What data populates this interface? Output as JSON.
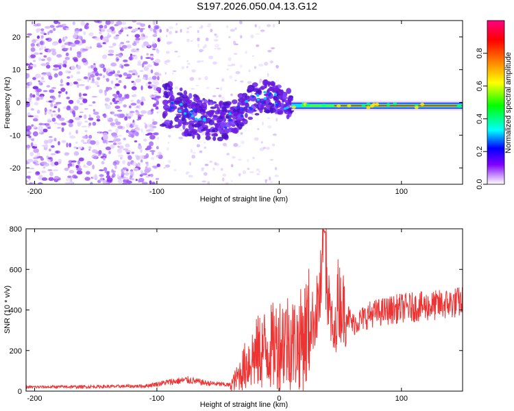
{
  "title": "S197.2026.050.04.13.G12",
  "chart_data": [
    {
      "type": "heatmap",
      "xlabel": "Height of straight line (km)",
      "ylabel": "Frequency (Hz)",
      "xlim": [
        -207,
        150
      ],
      "ylim": [
        -25,
        25
      ],
      "xticks": [
        -200,
        -100,
        0,
        100
      ],
      "yticks": [
        20,
        10,
        0,
        -10,
        -20
      ],
      "colorbar": {
        "label": "Normalized spectral amplitude",
        "range": [
          0,
          1
        ],
        "ticks": [
          "0.0",
          "0.2",
          "0.4",
          "0.6",
          "0.8"
        ],
        "colors": [
          "#ffffff",
          "#cc99ff",
          "#8000ff",
          "#0000ff",
          "#00ffff",
          "#00ff00",
          "#ffff00",
          "#ff8000",
          "#ff0000",
          "#ff0080"
        ]
      },
      "ridge": {
        "description_values": [
          {
            "x": -80,
            "y": -3
          },
          {
            "x": -60,
            "y": -5
          },
          {
            "x": -45,
            "y": -6
          },
          {
            "x": -30,
            "y": -2
          },
          {
            "x": -15,
            "y": 2
          },
          {
            "x": 0,
            "y": 1
          },
          {
            "x": 10,
            "y": -1
          },
          {
            "x": 30,
            "y": 0
          },
          {
            "x": 80,
            "y": -1
          },
          {
            "x": 150,
            "y": -1
          }
        ],
        "stable_band_start": 10,
        "stable_band_freq": -1
      }
    },
    {
      "type": "line",
      "xlabel": "Height of straight line (km)",
      "ylabel": "SNR (10 * v/v)",
      "xlim": [
        -207,
        150
      ],
      "ylim": [
        0,
        800
      ],
      "xticks": [
        -200,
        -100,
        0,
        100
      ],
      "yticks": [
        0,
        200,
        400,
        600,
        800
      ],
      "series": [
        {
          "name": "SNR",
          "color": "#ee3333",
          "anchors": [
            {
              "x": -207,
              "y": 20
            },
            {
              "x": -150,
              "y": 22
            },
            {
              "x": -110,
              "y": 25
            },
            {
              "x": -90,
              "y": 45
            },
            {
              "x": -75,
              "y": 55
            },
            {
              "x": -60,
              "y": 40
            },
            {
              "x": -40,
              "y": 30
            },
            {
              "x": -35,
              "y": 60
            },
            {
              "x": -25,
              "y": 150
            },
            {
              "x": -15,
              "y": 200
            },
            {
              "x": -5,
              "y": 220
            },
            {
              "x": 5,
              "y": 260
            },
            {
              "x": 15,
              "y": 230
            },
            {
              "x": 25,
              "y": 320
            },
            {
              "x": 30,
              "y": 380
            },
            {
              "x": 35,
              "y": 520
            },
            {
              "x": 37,
              "y": 790
            },
            {
              "x": 40,
              "y": 450
            },
            {
              "x": 45,
              "y": 240
            },
            {
              "x": 48,
              "y": 460
            },
            {
              "x": 60,
              "y": 330
            },
            {
              "x": 75,
              "y": 380
            },
            {
              "x": 100,
              "y": 410
            },
            {
              "x": 125,
              "y": 420
            },
            {
              "x": 150,
              "y": 440
            }
          ]
        }
      ]
    }
  ]
}
